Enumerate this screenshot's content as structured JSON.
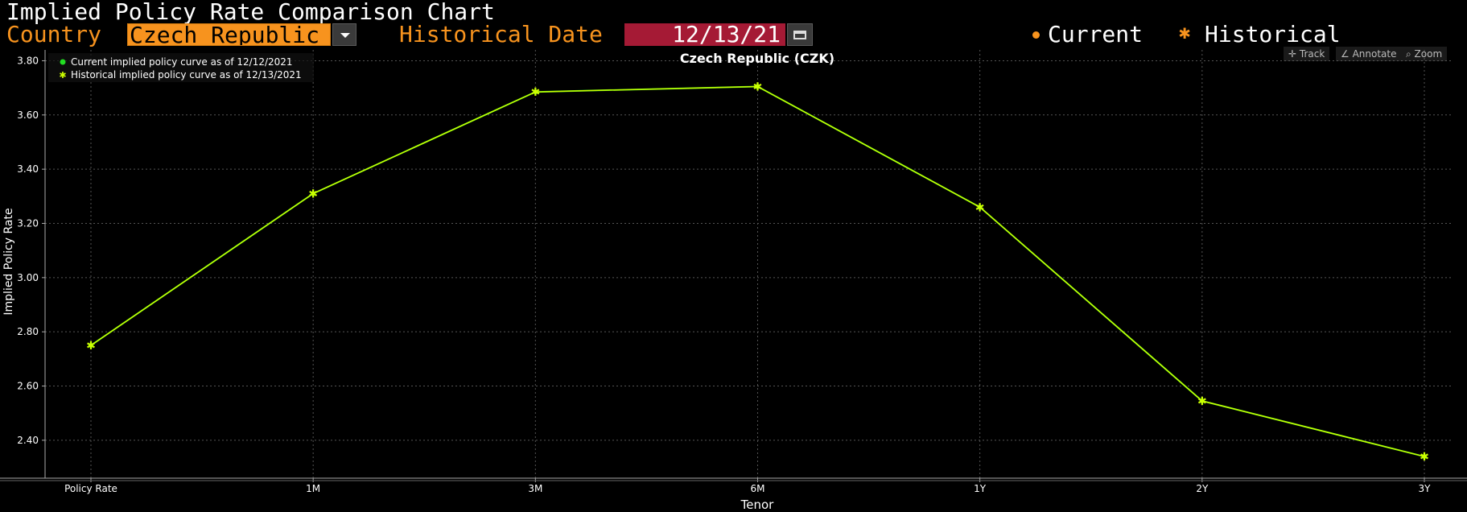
{
  "header": {
    "title": "Implied Policy Rate Comparison Chart",
    "country_label": "Country",
    "country_value": "Czech Republic",
    "historical_date_label": "Historical Date",
    "historical_date_value": "12/13/21",
    "legend_current": "Current",
    "legend_historical": "Historical"
  },
  "toolbar": {
    "track_label": "Track",
    "annotate_label": "Annotate",
    "zoom_label": "Zoom"
  },
  "colors": {
    "current": "#22dd22",
    "historical": "#ccff00",
    "accent": "#f7931e",
    "date_bg": "#a51a35"
  },
  "chart_data": {
    "type": "line",
    "title": "Czech Republic (CZK)",
    "xlabel": "Tenor",
    "ylabel": "Implied Policy Rate",
    "categories": [
      "Policy Rate",
      "1M",
      "3M",
      "6M",
      "1Y",
      "2Y",
      "3Y"
    ],
    "ylim": [
      2.26,
      3.84
    ],
    "yticks": [
      2.4,
      2.6,
      2.8,
      3.0,
      3.2,
      3.4,
      3.6,
      3.8
    ],
    "grid": true,
    "legend_position": "top-left",
    "series": [
      {
        "name": "Current implied policy curve as of 12/12/2021",
        "marker": "dot",
        "values": [
          2.75,
          3.31,
          3.685,
          3.705,
          3.26,
          2.545,
          2.34
        ]
      },
      {
        "name": "Historical implied policy curve as of 12/13/2021",
        "marker": "star",
        "values": [
          2.75,
          3.31,
          3.685,
          3.705,
          3.26,
          2.545,
          2.34
        ]
      }
    ]
  }
}
